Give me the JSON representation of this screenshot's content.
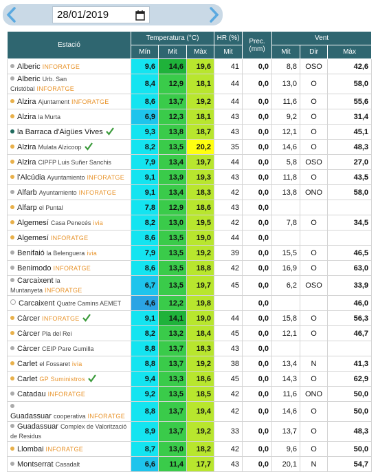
{
  "date": "28/01/2019",
  "headers": {
    "station": "Estació",
    "temperature": "Temperatura (°C)",
    "humidity": "HR (%)",
    "precipitation": "Prec. (mm)",
    "wind": "Vent",
    "sub": [
      "Mín",
      "Mit",
      "Màx",
      "Mit",
      "Mit",
      "Dir",
      "Màx"
    ]
  },
  "rows": [
    {
      "dot": "#aaaaaa",
      "name": "Alberic",
      "brand": "INFORATGE",
      "values": [
        "9,6",
        "14,6",
        "19,6",
        "41",
        "0,0",
        "8,8",
        "OSO",
        "42,6"
      ]
    },
    {
      "dot": "#aaaaaa",
      "name": "Alberic",
      "sub": "Urb. San Cristóbal",
      "brand": "INFORATGE",
      "values": [
        "8,4",
        "12,9",
        "18,1",
        "44",
        "0,0",
        "13,0",
        "O",
        "58,0"
      ]
    },
    {
      "dot": "#e8b04a",
      "name": "Alzira",
      "sub": "Ajuntament",
      "brand": "INFORATGE",
      "values": [
        "8,6",
        "13,7",
        "19,2",
        "44",
        "0,0",
        "11,6",
        "O",
        "55,6"
      ]
    },
    {
      "dot": "#e8b04a",
      "name": "Alzira",
      "sub": "la Murta",
      "values": [
        "6,9",
        "12,3",
        "18,1",
        "43",
        "0,0",
        "9,2",
        "O",
        "31,4"
      ]
    },
    {
      "dot": "#1f6a5e",
      "name": "la Barraca d'Aigües Vives",
      "check": true,
      "values": [
        "9,3",
        "13,8",
        "18,7",
        "43",
        "0,0",
        "12,1",
        "O",
        "45,1"
      ]
    },
    {
      "dot": "#e8b04a",
      "name": "Alzira",
      "sub": "Mulata Alzicoop",
      "check": true,
      "values": [
        "8,2",
        "13,5",
        "20,2",
        "35",
        "0,0",
        "14,6",
        "O",
        "48,3"
      ]
    },
    {
      "dot": "#e8b04a",
      "name": "Alzira",
      "sub": "CIPFP Luis Suñer Sanchis",
      "values": [
        "7,9",
        "13,4",
        "19,7",
        "44",
        "0,0",
        "5,8",
        "OSO",
        "27,0"
      ]
    },
    {
      "dot": "#e8b04a",
      "name": "l'Alcúdia",
      "sub": "Ayuntamiento",
      "brand": "INFORATGE",
      "values": [
        "9,1",
        "13,9",
        "19,3",
        "43",
        "0,0",
        "11,8",
        "O",
        "43,5"
      ]
    },
    {
      "dot": "#aaaaaa",
      "name": "Alfarb",
      "sub": "Ayuntamiento",
      "brand": "INFORATGE",
      "values": [
        "9,1",
        "13,4",
        "18,3",
        "42",
        "0,0",
        "13,8",
        "ONO",
        "58,0"
      ]
    },
    {
      "dot": "#e8b04a",
      "name": "Alfarp",
      "sub": "el Puntal",
      "values": [
        "7,8",
        "12,9",
        "18,6",
        "43",
        "0,0",
        null,
        null,
        null
      ]
    },
    {
      "dot": "#e8b04a",
      "name": "Algemesí",
      "sub": "Casa Penecés",
      "brand": "ivia",
      "values": [
        "8,2",
        "13,0",
        "19,5",
        "42",
        "0,0",
        "7,8",
        "O",
        "34,5"
      ]
    },
    {
      "dot": "#e8b04a",
      "name": "Algemesí",
      "brand": "INFORATGE",
      "values": [
        "8,6",
        "13,5",
        "19,0",
        "44",
        "0,0",
        null,
        null,
        null
      ]
    },
    {
      "dot": "#aaaaaa",
      "name": "Benifaió",
      "sub": "la Belenguera",
      "brand": "ivia",
      "values": [
        "7,9",
        "13,5",
        "19,2",
        "39",
        "0,0",
        "15,5",
        "O",
        "46,5"
      ]
    },
    {
      "dot": "#aaaaaa",
      "name": "Benimodo",
      "brand": "INFORATGE",
      "values": [
        "8,6",
        "13,5",
        "18,8",
        "42",
        "0,0",
        "16,9",
        "O",
        "63,0"
      ]
    },
    {
      "dot": "#aaaaaa",
      "name": "Carcaixent",
      "sub": "la Muntanyeta",
      "brand": "INFORATGE",
      "values": [
        "6,7",
        "13,5",
        "19,7",
        "45",
        "0,0",
        "6,2",
        "OSO",
        "33,9"
      ]
    },
    {
      "dot": "#ffffff",
      "name": "Carcaixent",
      "sub": "Quatre Camins AEMET",
      "values": [
        "4,6",
        "12,2",
        "19,8",
        null,
        "0,0",
        null,
        null,
        "46,0"
      ]
    },
    {
      "dot": "#e8b04a",
      "name": "Càrcer",
      "brand": "INFORATGE",
      "check": true,
      "values": [
        "9,1",
        "14,1",
        "19,0",
        "44",
        "0,0",
        "15,8",
        "O",
        "56,3"
      ]
    },
    {
      "dot": "#e8b04a",
      "name": "Càrcer",
      "sub": "Pla del Rei",
      "values": [
        "8,2",
        "13,2",
        "18,4",
        "45",
        "0,0",
        "12,1",
        "O",
        "46,7"
      ]
    },
    {
      "dot": "#aaaaaa",
      "name": "Càrcer",
      "sub": "CEIP Pare Gumilla",
      "values": [
        "8,8",
        "13,7",
        "18,3",
        "43",
        "0,0",
        null,
        null,
        null
      ]
    },
    {
      "dot": "#e8b04a",
      "name": "Carlet",
      "sub": "el Fossaret",
      "brand": "ivia",
      "values": [
        "8,8",
        "13,7",
        "19,2",
        "38",
        "0,0",
        "13,4",
        "N",
        "41,3"
      ]
    },
    {
      "dot": "#e8b04a",
      "name": "Carlet",
      "brand": "GP Suministros",
      "check": true,
      "values": [
        "9,4",
        "13,3",
        "18,6",
        "45",
        "0,0",
        "14,3",
        "O",
        "62,9"
      ]
    },
    {
      "dot": "#aaaaaa",
      "name": "Catadau",
      "brand": "INFORATGE",
      "values": [
        "9,2",
        "13,5",
        "18,5",
        "42",
        "0,0",
        "11,6",
        "ONO",
        "50,0"
      ]
    },
    {
      "dot": "#aaaaaa",
      "name": "Guadassuar",
      "sub": "cooperativa",
      "brand": "INFORATGE",
      "values": [
        "8,8",
        "13,7",
        "19,4",
        "42",
        "0,0",
        "14,6",
        "O",
        "50,0"
      ]
    },
    {
      "dot": "#aaaaaa",
      "name": "Guadassuar",
      "sub": "Complex de Valorització de Residus",
      "values": [
        "8,9",
        "13,7",
        "19,2",
        "33",
        "0,0",
        "13,7",
        "O",
        "48,3"
      ]
    },
    {
      "dot": "#e8b04a",
      "name": "Llombai",
      "brand": "INFORATGE",
      "values": [
        "8,7",
        "13,0",
        "18,2",
        "42",
        "0,0",
        "9,6",
        "O",
        "50,0"
      ]
    },
    {
      "dot": "#aaaaaa",
      "name": "Montserrat",
      "sub": "Casadalt",
      "values": [
        "6,6",
        "11,4",
        "17,7",
        "43",
        "0,0",
        "20,1",
        "N",
        "54,7"
      ]
    }
  ]
}
